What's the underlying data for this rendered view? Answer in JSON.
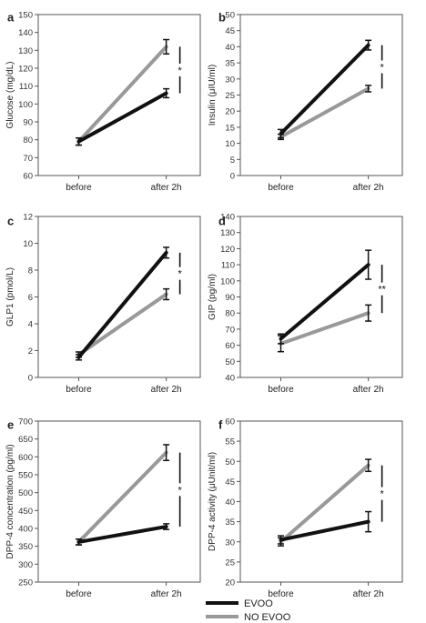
{
  "chart_data": [
    {
      "panel": "a",
      "type": "line",
      "categories": [
        "before",
        "after 2h"
      ],
      "ylabel": "Glucose (mg/dL)",
      "ylim": [
        60,
        150
      ],
      "yticks": [
        60,
        70,
        80,
        90,
        100,
        110,
        120,
        130,
        140,
        150
      ],
      "series": [
        {
          "name": "EVOO",
          "values": [
            79,
            106
          ],
          "errors": [
            2,
            2.5
          ]
        },
        {
          "name": "NO EVOO",
          "values": [
            79,
            132
          ],
          "errors": [
            2,
            4
          ]
        }
      ],
      "significance": "*"
    },
    {
      "panel": "b",
      "type": "line",
      "categories": [
        "before",
        "after 2h"
      ],
      "ylabel": "Insulin (μIU/ml)",
      "ylim": [
        0,
        50
      ],
      "yticks": [
        0,
        5,
        10,
        15,
        20,
        25,
        30,
        35,
        40,
        45,
        50
      ],
      "series": [
        {
          "name": "EVOO",
          "values": [
            13,
            40.5
          ],
          "errors": [
            1.3,
            1.5
          ]
        },
        {
          "name": "NO EVOO",
          "values": [
            12,
            27
          ],
          "errors": [
            0.8,
            1
          ]
        }
      ],
      "significance": "*"
    },
    {
      "panel": "c",
      "type": "line",
      "categories": [
        "before",
        "after 2h"
      ],
      "ylabel": "GLP1 (pmol/L)",
      "ylim": [
        0,
        12
      ],
      "yticks": [
        0,
        2,
        4,
        6,
        8,
        10,
        12
      ],
      "series": [
        {
          "name": "EVOO",
          "values": [
            1.5,
            9.3
          ],
          "errors": [
            0.2,
            0.4
          ]
        },
        {
          "name": "NO EVOO",
          "values": [
            1.7,
            6.2
          ],
          "errors": [
            0.2,
            0.4
          ]
        }
      ],
      "significance": "*"
    },
    {
      "panel": "d",
      "type": "line",
      "categories": [
        "before",
        "after 2h"
      ],
      "ylabel": "GIP (pg/ml)",
      "ylim": [
        40,
        140
      ],
      "yticks": [
        40,
        50,
        60,
        70,
        80,
        90,
        100,
        110,
        120,
        130,
        140
      ],
      "series": [
        {
          "name": "EVOO",
          "values": [
            64,
            110
          ],
          "errors": [
            3,
            9
          ]
        },
        {
          "name": "NO EVOO",
          "values": [
            61,
            80
          ],
          "errors": [
            5,
            5
          ]
        }
      ],
      "significance": "**"
    },
    {
      "panel": "e",
      "type": "line",
      "categories": [
        "before",
        "after 2h"
      ],
      "ylabel": "DPP-4 concentration (pg/ml)",
      "ylim": [
        250,
        700
      ],
      "yticks": [
        250,
        300,
        350,
        400,
        450,
        500,
        550,
        600,
        650,
        700
      ],
      "series": [
        {
          "name": "EVOO",
          "values": [
            362,
            405
          ],
          "errors": [
            8,
            8
          ]
        },
        {
          "name": "NO EVOO",
          "values": [
            362,
            612
          ],
          "errors": [
            8,
            22
          ]
        }
      ],
      "significance": "*"
    },
    {
      "panel": "f",
      "type": "line",
      "categories": [
        "before",
        "after 2h"
      ],
      "ylabel": "DPP-4 activity (μUnit/ml)",
      "ylim": [
        20,
        60
      ],
      "yticks": [
        20,
        25,
        30,
        35,
        40,
        45,
        50,
        55,
        60
      ],
      "series": [
        {
          "name": "EVOO",
          "values": [
            30.5,
            35
          ],
          "errors": [
            1,
            2.5
          ]
        },
        {
          "name": "NO EVOO",
          "values": [
            30,
            49
          ],
          "errors": [
            1,
            1.5
          ]
        }
      ],
      "significance": "*"
    }
  ],
  "legend": {
    "position": "bottom-center",
    "items": [
      {
        "label": "EVOO",
        "color": "#111111"
      },
      {
        "label": "NO EVOO",
        "color": "#999999"
      }
    ]
  },
  "colors": {
    "EVOO": "#111111",
    "NO EVOO": "#999999",
    "axis": "#555555"
  }
}
